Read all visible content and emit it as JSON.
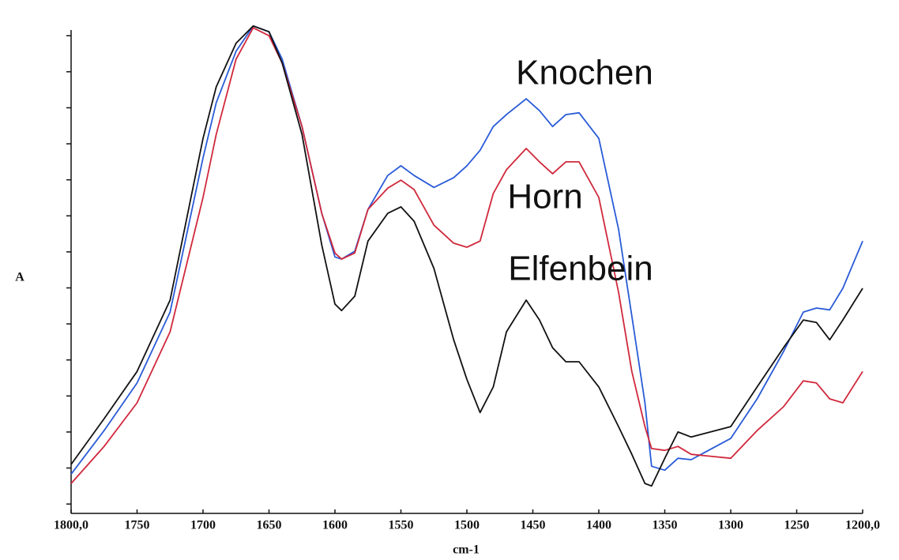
{
  "chart_data": {
    "type": "line",
    "x_label": "cm-1",
    "y_label": "A",
    "x": [
      1800,
      1775,
      1750,
      1725,
      1700,
      1690,
      1675,
      1662,
      1650,
      1640,
      1625,
      1610,
      1600,
      1595,
      1585,
      1575,
      1560,
      1550,
      1540,
      1525,
      1510,
      1500,
      1490,
      1480,
      1470,
      1455,
      1445,
      1435,
      1425,
      1415,
      1400,
      1385,
      1375,
      1365,
      1360,
      1350,
      1340,
      1330,
      1300,
      1280,
      1260,
      1245,
      1235,
      1225,
      1215,
      1200
    ],
    "series": [
      {
        "name": "Knochen",
        "color": "#2a5bd7",
        "values": [
          0.83,
          2.04,
          3.36,
          5.33,
          9.61,
          11.14,
          12.57,
          13.27,
          13.11,
          12.35,
          10.48,
          8.07,
          6.86,
          6.8,
          7.02,
          8.18,
          9.12,
          9.39,
          9.12,
          8.79,
          9.06,
          9.39,
          9.82,
          10.48,
          10.81,
          11.25,
          10.92,
          10.48,
          10.81,
          10.86,
          10.15,
          7.63,
          5.22,
          2.81,
          1.05,
          0.94,
          1.27,
          1.23,
          1.82,
          2.92,
          4.23,
          5.33,
          5.44,
          5.39,
          5.99,
          7.3
        ]
      },
      {
        "name": "Horn",
        "color": "#d0283c",
        "values": [
          0.57,
          1.6,
          2.81,
          4.78,
          8.51,
          10.26,
          12.35,
          13.22,
          13.0,
          12.24,
          10.48,
          8.07,
          6.97,
          6.8,
          6.97,
          8.18,
          8.77,
          8.99,
          8.73,
          7.74,
          7.24,
          7.13,
          7.3,
          8.62,
          9.28,
          9.87,
          9.5,
          9.17,
          9.5,
          9.5,
          8.51,
          5.88,
          3.68,
          2.15,
          1.54,
          1.49,
          1.6,
          1.38,
          1.27,
          2.04,
          2.7,
          3.42,
          3.36,
          2.92,
          2.81,
          3.68
        ]
      },
      {
        "name": "Elfenbein",
        "color": "#111111",
        "values": [
          1.1,
          2.37,
          3.68,
          5.66,
          10.15,
          11.58,
          12.79,
          13.27,
          13.11,
          12.24,
          10.26,
          7.19,
          5.55,
          5.37,
          5.77,
          7.3,
          8.07,
          8.25,
          7.85,
          6.54,
          4.56,
          3.46,
          2.54,
          3.25,
          4.78,
          5.66,
          5.11,
          4.34,
          3.95,
          3.95,
          3.25,
          2.15,
          1.38,
          0.57,
          0.5,
          1.27,
          2.0,
          1.86,
          2.15,
          3.25,
          4.34,
          5.11,
          5.04,
          4.56,
          5.11,
          5.99
        ]
      }
    ],
    "xlim": [
      1800,
      1200
    ],
    "xticks": [
      {
        "value": 1800,
        "label": "1800,0"
      },
      1750,
      1700,
      1650,
      1600,
      1550,
      1500,
      1450,
      1400,
      1350,
      1300,
      1250,
      {
        "value": 1200,
        "label": "1200,0"
      }
    ],
    "ylim": [
      -0.26,
      13.4
    ],
    "yticks": [
      0,
      1,
      2,
      3,
      4,
      5,
      6,
      7,
      8,
      9,
      10,
      11,
      12,
      13
    ]
  }
}
